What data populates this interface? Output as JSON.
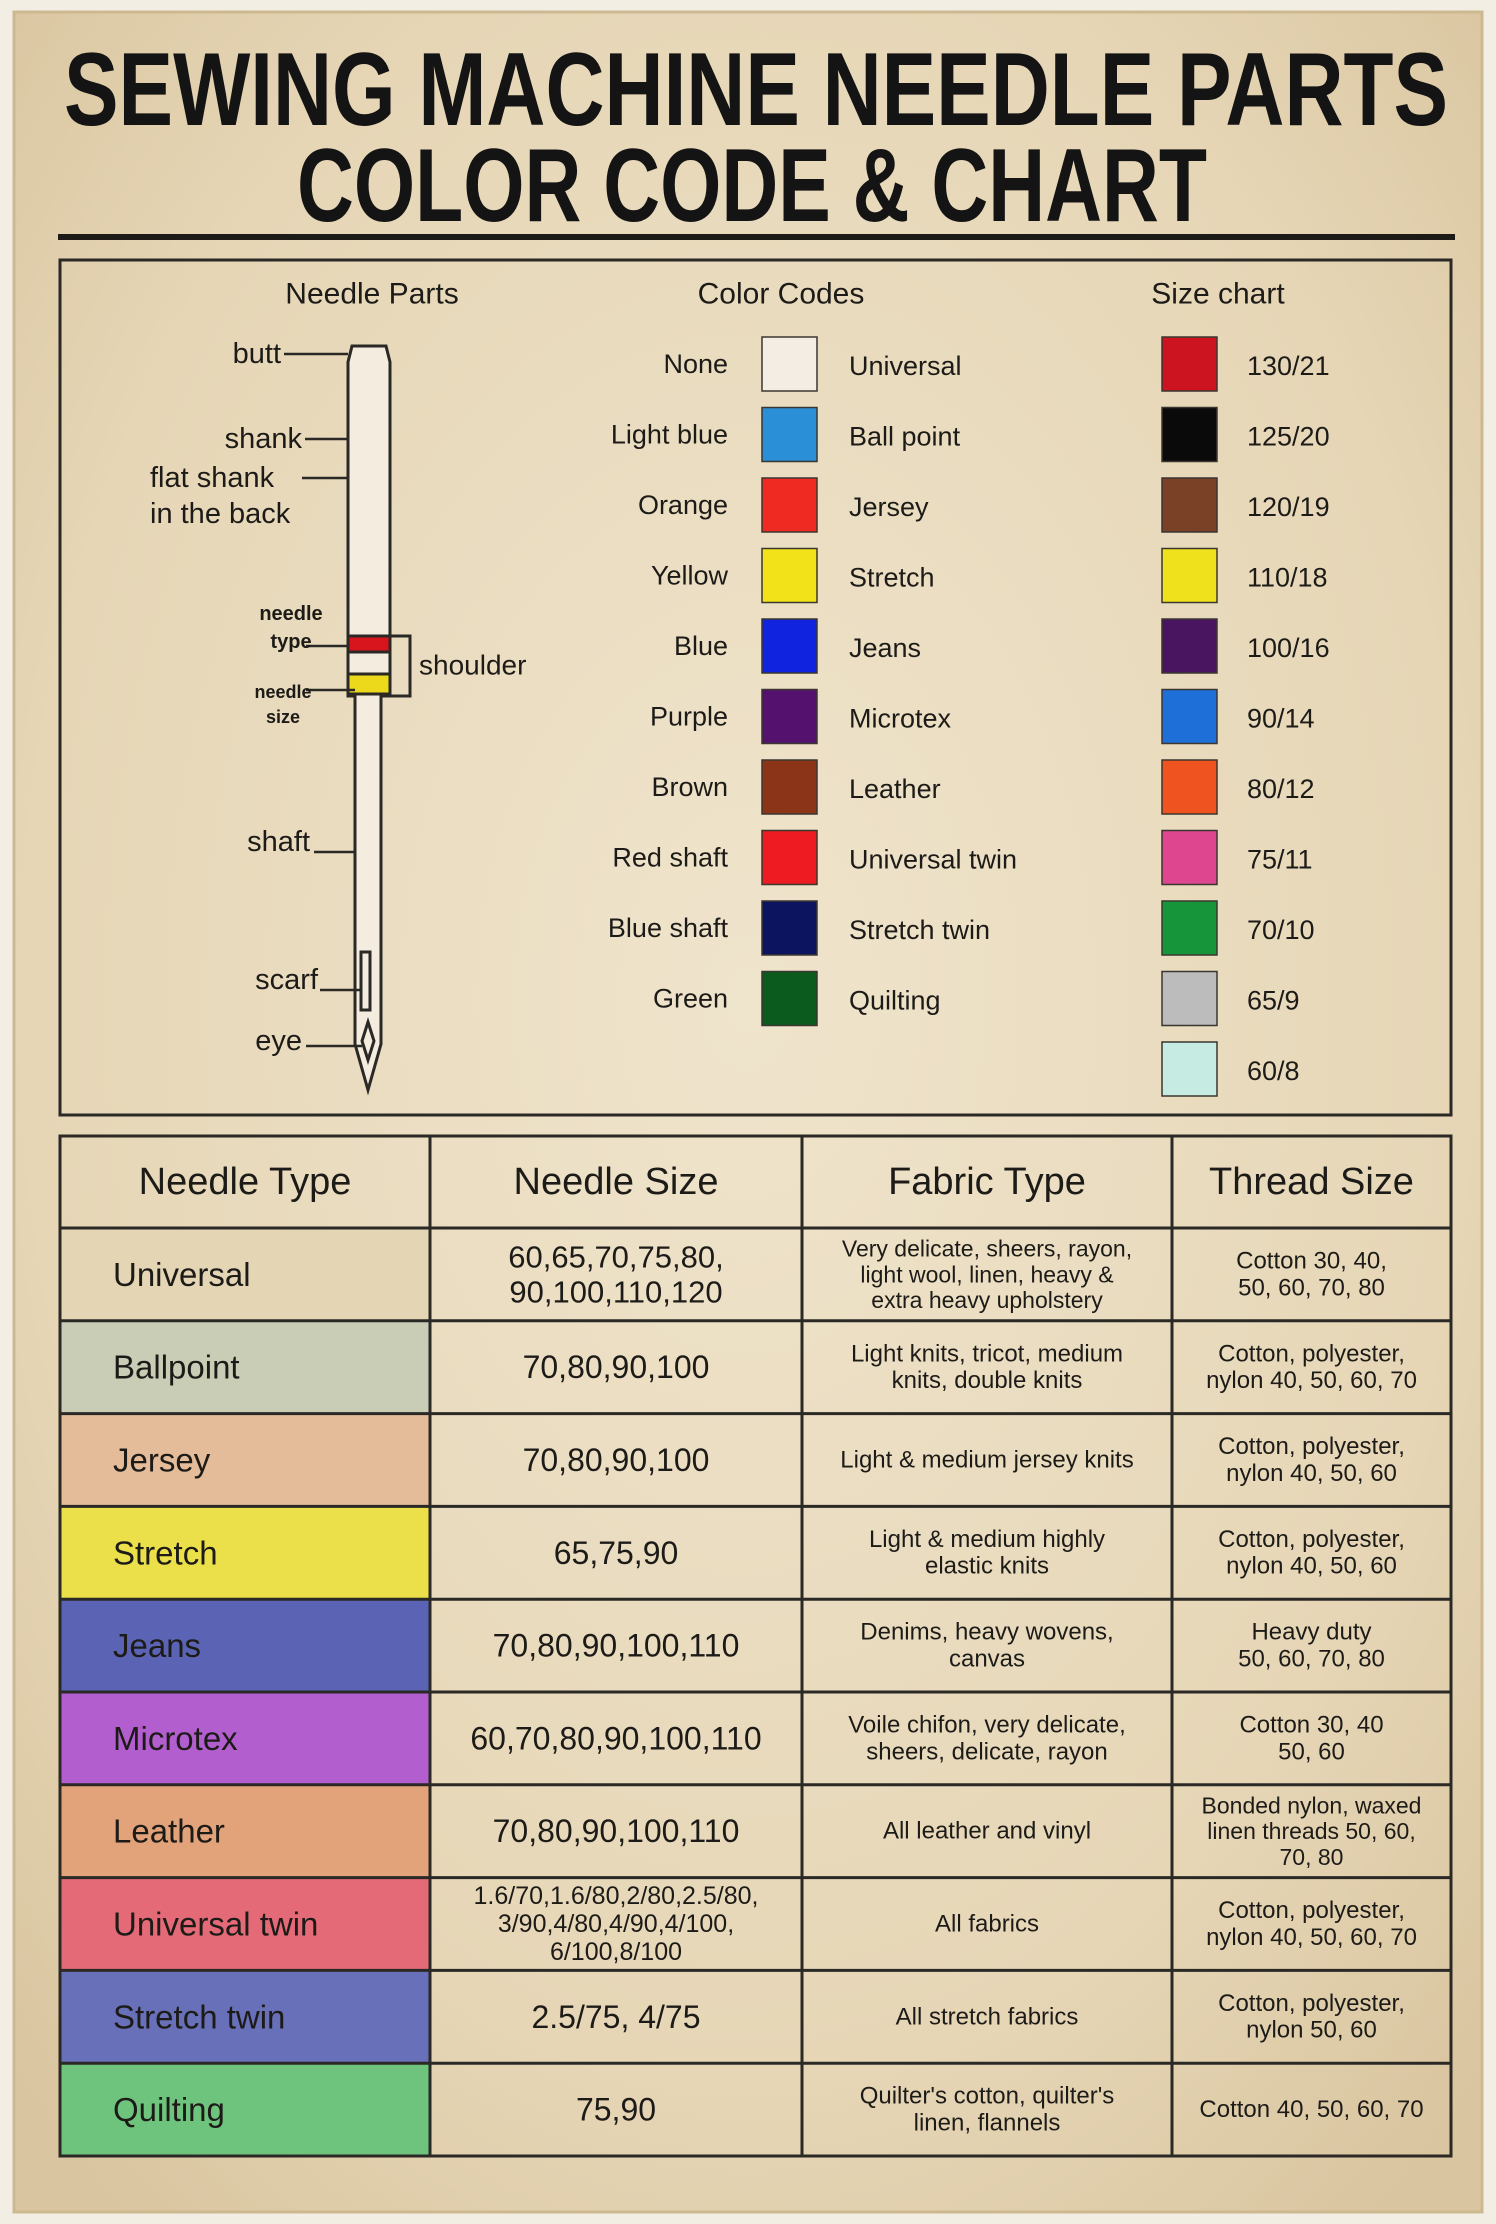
{
  "header": {
    "title_lines": [
      "SEWING MACHINE NEEDLE PARTS",
      "COLOR CODE & CHART"
    ]
  },
  "needle_parts": {
    "heading": "Needle Parts",
    "labels": {
      "butt": [
        "butt"
      ],
      "shank": [
        "shank"
      ],
      "flat_shank": [
        "flat shank",
        "in the back"
      ],
      "needle_type": [
        "needle",
        "type"
      ],
      "needle_size": [
        "needle",
        "size"
      ],
      "shoulder": [
        "shoulder"
      ],
      "shaft": [
        "shaft"
      ],
      "scarf": [
        "scarf"
      ],
      "eye": [
        "eye"
      ]
    }
  },
  "color_codes": {
    "heading": "Color Codes",
    "rows": [
      {
        "color_name": "None",
        "swatch": "#f3ede3",
        "needle": "Universal"
      },
      {
        "color_name": "Light blue",
        "swatch": "#2a8fd6",
        "needle": "Ball point"
      },
      {
        "color_name": "Orange",
        "swatch": "#ee2a22",
        "needle": "Jersey"
      },
      {
        "color_name": "Yellow",
        "swatch": "#f1e21a",
        "needle": "Stretch"
      },
      {
        "color_name": "Blue",
        "swatch": "#1024e0",
        "needle": "Jeans"
      },
      {
        "color_name": "Purple",
        "swatch": "#54126e",
        "needle": "Microtex"
      },
      {
        "color_name": "Brown",
        "swatch": "#8b3418",
        "needle": "Leather"
      },
      {
        "color_name": "Red shaft",
        "swatch": "#ee1c22",
        "needle": "Universal twin"
      },
      {
        "color_name": "Blue shaft",
        "swatch": "#0c1460",
        "needle": "Stretch twin"
      },
      {
        "color_name": "Green",
        "swatch": "#0b5a1e",
        "needle": "Quilting"
      }
    ]
  },
  "size_chart": {
    "heading": "Size chart",
    "rows": [
      {
        "swatch": "#cc1420",
        "size": "130/21"
      },
      {
        "swatch": "#0a0a0a",
        "size": "125/20"
      },
      {
        "swatch": "#7a4126",
        "size": "120/19"
      },
      {
        "swatch": "#efe21c",
        "size": "110/18"
      },
      {
        "swatch": "#4a1560",
        "size": "100/16"
      },
      {
        "swatch": "#1f6fd8",
        "size": "90/14"
      },
      {
        "swatch": "#ee5320",
        "size": "80/12"
      },
      {
        "swatch": "#de4690",
        "size": "75/11"
      },
      {
        "swatch": "#17953a",
        "size": "70/10"
      },
      {
        "swatch": "#bcbcbc",
        "size": "65/9"
      },
      {
        "swatch": "#c5ebe2",
        "size": "60/8"
      }
    ]
  },
  "table": {
    "headers": [
      "Needle Type",
      "Needle Size",
      "Fabric Type",
      "Thread Size"
    ],
    "rows": [
      {
        "color": "#e4d5b4",
        "cells": [
          [
            "Universal"
          ],
          [
            "60,65,70,75,80,",
            "90,100,110,120"
          ],
          [
            "Very delicate, sheers, rayon,",
            "light wool, linen, heavy &",
            "extra heavy upholstery"
          ],
          [
            "Cotton 30, 40,",
            "50, 60, 70, 80"
          ]
        ]
      },
      {
        "color": "#c9cdb5",
        "cells": [
          [
            "Ballpoint"
          ],
          [
            "70,80,90,100"
          ],
          [
            "Light knits, tricot, medium",
            "knits, double knits"
          ],
          [
            "Cotton, polyester,",
            "nylon 40, 50, 60, 70"
          ]
        ]
      },
      {
        "color": "#e4bc9a",
        "cells": [
          [
            "Jersey"
          ],
          [
            "70,80,90,100"
          ],
          [
            "Light & medium jersey knits"
          ],
          [
            "Cotton, polyester,",
            "nylon 40, 50, 60"
          ]
        ]
      },
      {
        "color": "#ebdf4a",
        "cells": [
          [
            "Stretch"
          ],
          [
            "65,75,90"
          ],
          [
            "Light & medium highly",
            "elastic knits"
          ],
          [
            "Cotton, polyester,",
            "nylon 40, 50, 60"
          ]
        ]
      },
      {
        "color": "#5b63b5",
        "cells": [
          [
            "Jeans"
          ],
          [
            "70,80,90,100,110"
          ],
          [
            "Denims, heavy wovens,",
            "canvas"
          ],
          [
            "Heavy duty",
            "50, 60, 70, 80"
          ]
        ]
      },
      {
        "color": "#b35ecf",
        "cells": [
          [
            "Microtex"
          ],
          [
            "60,70,80,90,100,110"
          ],
          [
            "Voile chifon, very delicate,",
            "sheers, delicate, rayon"
          ],
          [
            "Cotton 30, 40",
            "50, 60"
          ]
        ]
      },
      {
        "color": "#e3a37a",
        "cells": [
          [
            "Leather"
          ],
          [
            "70,80,90,100,110"
          ],
          [
            "All leather and vinyl"
          ],
          [
            "Bonded nylon, waxed",
            "linen threads 50, 60,",
            "70, 80"
          ]
        ]
      },
      {
        "color": "#e56a78",
        "cells": [
          [
            "Universal twin"
          ],
          [
            "1.6/70,1.6/80,2/80,2.5/80,",
            "3/90,4/80,4/90,4/100,",
            "6/100,8/100"
          ],
          [
            "All fabrics"
          ],
          [
            "Cotton, polyester,",
            "nylon 40, 50, 60, 70"
          ]
        ]
      },
      {
        "color": "#6770b8",
        "cells": [
          [
            "Stretch twin"
          ],
          [
            "2.5/75, 4/75"
          ],
          [
            "All stretch fabrics"
          ],
          [
            "Cotton, polyester,",
            "nylon 50, 60"
          ]
        ]
      },
      {
        "color": "#6fc47d",
        "cells": [
          [
            "Quilting"
          ],
          [
            "75,90"
          ],
          [
            "Quilter's cotton, quilter's",
            "linen, flannels"
          ],
          [
            "Cotton 40, 50, 60, 70"
          ]
        ]
      }
    ]
  }
}
